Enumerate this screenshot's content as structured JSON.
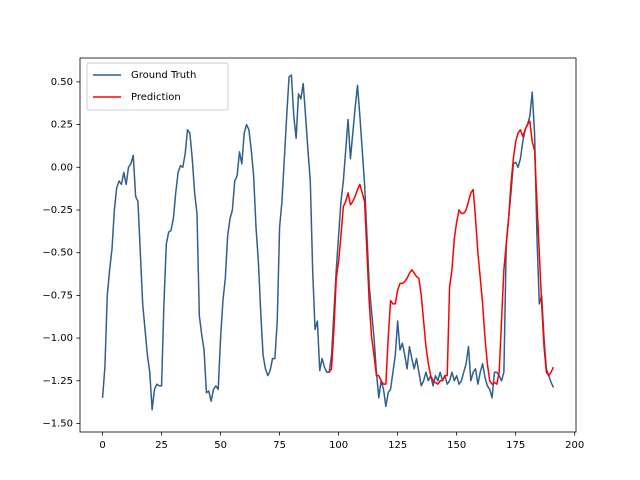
{
  "chart_data": {
    "type": "line",
    "x": [
      0,
      1,
      2,
      3,
      4,
      5,
      6,
      7,
      8,
      9,
      10,
      11,
      12,
      13,
      14,
      15,
      16,
      17,
      18,
      19,
      20,
      21,
      22,
      23,
      24,
      25,
      26,
      27,
      28,
      29,
      30,
      31,
      32,
      33,
      34,
      35,
      36,
      37,
      38,
      39,
      40,
      41,
      42,
      43,
      44,
      45,
      46,
      47,
      48,
      49,
      50,
      51,
      52,
      53,
      54,
      55,
      56,
      57,
      58,
      59,
      60,
      61,
      62,
      63,
      64,
      65,
      66,
      67,
      68,
      69,
      70,
      71,
      72,
      73,
      74,
      75,
      76,
      77,
      78,
      79,
      80,
      81,
      82,
      83,
      84,
      85,
      86,
      87,
      88,
      89,
      90,
      91,
      92,
      93,
      94,
      95,
      96,
      97,
      98,
      99,
      100,
      101,
      102,
      103,
      104,
      105,
      106,
      107,
      108,
      109,
      110,
      111,
      112,
      113,
      114,
      115,
      116,
      117,
      118,
      119,
      120,
      121,
      122,
      123,
      124,
      125,
      126,
      127,
      128,
      129,
      130,
      131,
      132,
      133,
      134,
      135,
      136,
      137,
      138,
      139,
      140,
      141,
      142,
      143,
      144,
      145,
      146,
      147,
      148,
      149,
      150,
      151,
      152,
      153,
      154,
      155,
      156,
      157,
      158,
      159,
      160,
      161,
      162,
      163,
      164,
      165,
      166,
      167,
      168,
      169,
      170,
      171,
      172,
      173,
      174,
      175,
      176,
      177,
      178,
      179,
      180,
      181,
      182,
      183,
      184,
      185,
      186,
      187,
      188,
      189,
      190,
      191
    ],
    "series": [
      {
        "name": "Ground Truth",
        "color": "#2f5f8f",
        "values": [
          -1.35,
          -1.17,
          -0.75,
          -0.6,
          -0.48,
          -0.25,
          -0.12,
          -0.08,
          -0.1,
          -0.03,
          -0.1,
          0,
          0.02,
          0.07,
          -0.17,
          -0.2,
          -0.5,
          -0.8,
          -0.95,
          -1.1,
          -1.2,
          -1.42,
          -1.3,
          -1.27,
          -1.28,
          -1.28,
          -0.8,
          -0.45,
          -0.38,
          -0.37,
          -0.3,
          -0.15,
          -0.03,
          0.01,
          0,
          0.08,
          0.22,
          0.2,
          0.05,
          -0.15,
          -0.27,
          -0.87,
          -0.98,
          -1.07,
          -1.32,
          -1.31,
          -1.37,
          -1.3,
          -1.28,
          -1.3,
          -1,
          -0.78,
          -0.65,
          -0.4,
          -0.3,
          -0.25,
          -0.08,
          -0.05,
          0.09,
          0.02,
          0.2,
          0.25,
          0.22,
          0.1,
          -0.05,
          -0.35,
          -0.55,
          -0.85,
          -1.1,
          -1.18,
          -1.22,
          -1.19,
          -1.12,
          -1.12,
          -0.9,
          -0.35,
          -0.2,
          0.05,
          0.3,
          0.53,
          0.54,
          0.3,
          0.17,
          0.43,
          0.4,
          0.49,
          0.3,
          0.1,
          -0.08,
          -0.6,
          -0.95,
          -0.9,
          -1.19,
          -1.12,
          -1.17,
          -1.2,
          -1.2,
          -1.1,
          -0.85,
          -0.6,
          -0.4,
          -0.2,
          -0.08,
          0.1,
          0.28,
          0.05,
          0.2,
          0.35,
          0.48,
          0.3,
          0.1,
          -0.1,
          -0.4,
          -0.7,
          -0.85,
          -1,
          -1.2,
          -1.35,
          -1.25,
          -1.3,
          -1.4,
          -1.32,
          -1.3,
          -1.2,
          -1.1,
          -0.9,
          -1.07,
          -1.03,
          -1.1,
          -1.18,
          -1.05,
          -1.12,
          -1.18,
          -1.12,
          -1.2,
          -1.28,
          -1.25,
          -1.2,
          -1.25,
          -1.22,
          -1.28,
          -1.22,
          -1.25,
          -1.2,
          -1.25,
          -1.22,
          -1.27,
          -1.25,
          -1.2,
          -1.25,
          -1.22,
          -1.27,
          -1.25,
          -1.2,
          -1.15,
          -1.05,
          -1.25,
          -1.2,
          -1.18,
          -1.27,
          -1.2,
          -1.15,
          -1.23,
          -1.28,
          -1.3,
          -1.35,
          -1.2,
          -1.2,
          -1.22,
          -1.25,
          -1.2,
          -0.45,
          -0.3,
          -0.15,
          0.02,
          0.03,
          0,
          0.05,
          0.15,
          0.22,
          0.25,
          0.3,
          0.44,
          0.2,
          -0.4,
          -0.8,
          -0.75,
          -1,
          -1.18,
          -1.22,
          -1.26,
          -1.29
        ]
      },
      {
        "name": "Prediction",
        "color": "#ff0000",
        "values": [
          null,
          null,
          null,
          null,
          null,
          null,
          null,
          null,
          null,
          null,
          null,
          null,
          null,
          null,
          null,
          null,
          null,
          null,
          null,
          null,
          null,
          null,
          null,
          null,
          null,
          null,
          null,
          null,
          null,
          null,
          null,
          null,
          null,
          null,
          null,
          null,
          null,
          null,
          null,
          null,
          null,
          null,
          null,
          null,
          null,
          null,
          null,
          null,
          null,
          null,
          null,
          null,
          null,
          null,
          null,
          null,
          null,
          null,
          null,
          null,
          null,
          null,
          null,
          null,
          null,
          null,
          null,
          null,
          null,
          null,
          null,
          null,
          null,
          null,
          null,
          null,
          null,
          null,
          null,
          null,
          null,
          null,
          null,
          null,
          null,
          null,
          null,
          null,
          null,
          null,
          null,
          null,
          null,
          null,
          null,
          null,
          -1.2,
          -1.18,
          -0.95,
          -0.65,
          -0.55,
          -0.4,
          -0.23,
          -0.2,
          -0.15,
          -0.22,
          -0.2,
          -0.17,
          -0.13,
          -0.1,
          -0.15,
          -0.2,
          -0.5,
          -0.8,
          -1,
          -1.1,
          -1.22,
          -1.22,
          -1.25,
          -1.27,
          -1.27,
          -1,
          -0.78,
          -0.8,
          -0.8,
          -0.72,
          -0.68,
          -0.68,
          -0.67,
          -0.65,
          -0.62,
          -0.6,
          -0.62,
          -0.64,
          -0.65,
          -0.75,
          -0.9,
          -1.05,
          -1.15,
          -1.22,
          -1.25,
          -1.26,
          -1.27,
          -1.25,
          -1.25,
          -1.22,
          -1.22,
          -0.7,
          -0.6,
          -0.42,
          -0.32,
          -0.25,
          -0.27,
          -0.27,
          -0.25,
          -0.2,
          -0.15,
          -0.13,
          -0.3,
          -0.5,
          -0.65,
          -0.8,
          -1,
          -1.15,
          -1.25,
          -1.27,
          -1.26,
          -1.27,
          -1.2,
          -0.9,
          -0.6,
          -0.45,
          -0.3,
          -0.1,
          0.05,
          0.15,
          0.2,
          0.22,
          0.18,
          0.22,
          0.25,
          0.27,
          0.15,
          0.1,
          -0.2,
          -0.5,
          -0.8,
          -1.05,
          -1.2,
          -1.22,
          -1.2,
          -1.17
        ]
      }
    ],
    "xlim": [
      -9.55,
      200.55
    ],
    "ylim": [
      -1.55,
      0.64
    ],
    "xticks": [
      0,
      25,
      50,
      75,
      100,
      125,
      150,
      175,
      200
    ],
    "yticks": [
      {
        "value": -1.5,
        "label": "−1.50"
      },
      {
        "value": -1.25,
        "label": "−1.25"
      },
      {
        "value": -1,
        "label": "−1.00"
      },
      {
        "value": -0.75,
        "label": "−0.75"
      },
      {
        "value": -0.5,
        "label": "−0.50"
      },
      {
        "value": -0.25,
        "label": "−0.25"
      },
      {
        "value": 0,
        "label": "0.00"
      },
      {
        "value": 0.25,
        "label": "0.25"
      },
      {
        "value": 0.5,
        "label": "0.50"
      }
    ],
    "legend": "upper left"
  }
}
